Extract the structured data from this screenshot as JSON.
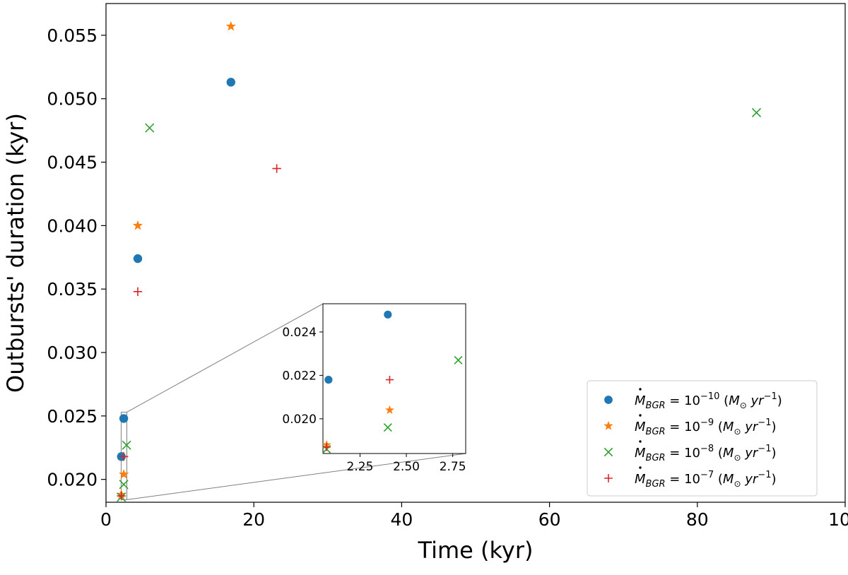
{
  "chart_data": {
    "type": "scatter",
    "title": "",
    "xlabel": "Time (kyr)",
    "ylabel": "Outbursts' duration (kyr)",
    "xlim": [
      0,
      100
    ],
    "ylim": [
      0.0182,
      0.0575
    ],
    "xticks": [
      0,
      20,
      40,
      60,
      80,
      100
    ],
    "yticks": [
      0.02,
      0.025,
      0.03,
      0.035,
      0.04,
      0.045,
      0.05,
      0.055
    ],
    "x_tick_labels": [
      "0",
      "20",
      "40",
      "60",
      "80",
      "100"
    ],
    "y_tick_labels": [
      "0.020",
      "0.025",
      "0.030",
      "0.035",
      "0.040",
      "0.045",
      "0.050",
      "0.055"
    ],
    "grid": false,
    "legend_position": "lower-right",
    "series": [
      {
        "name": "10^-10",
        "legend_label": {
          "base": "10",
          "exp": "−10"
        },
        "marker": "circle",
        "color": "#1f77b4",
        "points": [
          [
            2.08,
            0.0218
          ],
          [
            2.4,
            0.0248
          ],
          [
            4.3,
            0.0374
          ],
          [
            16.9,
            0.0513
          ]
        ]
      },
      {
        "name": "10^-9",
        "legend_label": {
          "base": "10",
          "exp": "−9"
        },
        "marker": "star",
        "color": "#ff7f0e",
        "points": [
          [
            2.07,
            0.0188
          ],
          [
            2.41,
            0.0204
          ],
          [
            4.3,
            0.04
          ],
          [
            16.9,
            0.0557
          ]
        ]
      },
      {
        "name": "10^-8",
        "legend_label": {
          "base": "10",
          "exp": "−8"
        },
        "marker": "x",
        "color": "#2ca02c",
        "points": [
          [
            2.07,
            0.0186
          ],
          [
            2.4,
            0.0196
          ],
          [
            2.78,
            0.0227
          ],
          [
            5.9,
            0.0477
          ],
          [
            88.0,
            0.0489
          ]
        ]
      },
      {
        "name": "10^-7",
        "legend_label": {
          "base": "10",
          "exp": "−7"
        },
        "marker": "plus",
        "color": "#d62728",
        "points": [
          [
            2.07,
            0.0187
          ],
          [
            2.41,
            0.0218
          ],
          [
            4.3,
            0.0348
          ],
          [
            23.1,
            0.0445
          ]
        ]
      }
    ],
    "inset": {
      "xlim": [
        2.05,
        2.82
      ],
      "ylim": [
        0.0184,
        0.0253
      ],
      "xticks": [
        2.25,
        2.5,
        2.75
      ],
      "yticks": [
        0.02,
        0.022,
        0.024
      ],
      "x_tick_labels": [
        "2.25",
        "2.50",
        "2.75"
      ],
      "y_tick_labels": [
        "0.020",
        "0.022",
        "0.024"
      ]
    }
  }
}
